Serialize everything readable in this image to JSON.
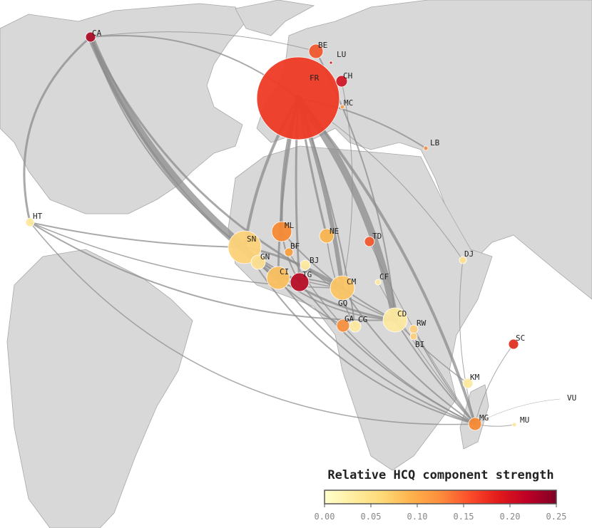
{
  "map": {
    "nodes": [
      {
        "label": "CA",
        "color": "#b0102a"
      },
      {
        "label": "BE",
        "color": "#f05a30"
      },
      {
        "label": "LU",
        "color": "#d02020"
      },
      {
        "label": "FR",
        "color": "#ee3a25"
      },
      {
        "label": "CH",
        "color": "#d01828"
      },
      {
        "label": "MC",
        "color": "#f8a050"
      },
      {
        "label": "LB",
        "color": "#f89040"
      },
      {
        "label": "HT",
        "color": "#fde9a0"
      },
      {
        "label": "ML",
        "color": "#f58a35"
      },
      {
        "label": "SN",
        "color": "#fdd37a"
      },
      {
        "label": "NE",
        "color": "#fab550"
      },
      {
        "label": "TD",
        "color": "#f05a30"
      },
      {
        "label": "BF",
        "color": "#f8a040"
      },
      {
        "label": "GN",
        "color": "#fde090"
      },
      {
        "label": "BJ",
        "color": "#fde9a0"
      },
      {
        "label": "CI",
        "color": "#fbc060"
      },
      {
        "label": "TG",
        "color": "#b81028"
      },
      {
        "label": "CM",
        "color": "#fbc565"
      },
      {
        "label": "CF",
        "color": "#fde9a0"
      },
      {
        "label": "GQ",
        "color": "#fde090"
      },
      {
        "label": "GA",
        "color": "#f89040"
      },
      {
        "label": "CG",
        "color": "#fde9a0"
      },
      {
        "label": "CD",
        "color": "#fde9a0"
      },
      {
        "label": "RW",
        "color": "#fdd080"
      },
      {
        "label": "BI",
        "color": "#fdd080"
      },
      {
        "label": "DJ",
        "color": "#fde090"
      },
      {
        "label": "SC",
        "color": "#e03020"
      },
      {
        "label": "KM",
        "color": "#fde9a0"
      },
      {
        "label": "VU",
        "color": "#fde9a0"
      },
      {
        "label": "MG",
        "color": "#f58a35"
      },
      {
        "label": "MU",
        "color": "#fde9a0"
      }
    ],
    "colorbar": {
      "title": "Relative HCQ component strength",
      "lim": [
        0,
        0.25
      ],
      "colors": [
        "#ffffcc",
        "#ffeda0",
        "#fed976",
        "#feb24c",
        "#fd8d3c",
        "#fc4e2a",
        "#e31a1c",
        "#bd0026",
        "#800026"
      ],
      "ticks": [
        {
          "value": 0,
          "label": "0.00"
        },
        {
          "value": 0.05,
          "label": "0.05"
        },
        {
          "value": 0.1,
          "label": "0.10"
        },
        {
          "value": 0.15,
          "label": "0.15"
        },
        {
          "value": 0.2,
          "label": "0.20"
        },
        {
          "value": 0.25,
          "label": "0.25"
        }
      ]
    }
  }
}
